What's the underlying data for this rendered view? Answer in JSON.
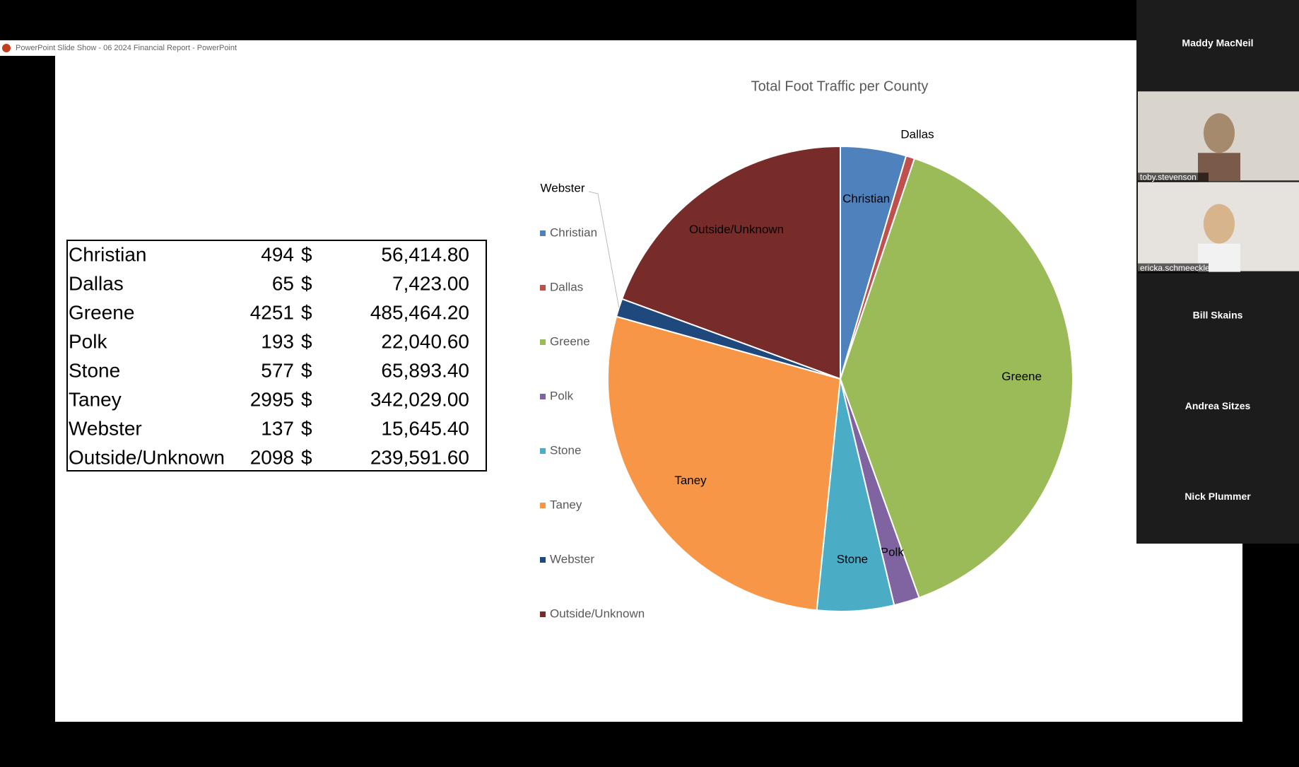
{
  "window": {
    "title": "PowerPoint Slide Show  -  06 2024 Financial Report - PowerPoint"
  },
  "chart_data": {
    "type": "pie",
    "title": "Total Foot Traffic per County",
    "categories": [
      "Christian",
      "Dallas",
      "Greene",
      "Polk",
      "Stone",
      "Taney",
      "Webster",
      "Outside/Unknown"
    ],
    "values": [
      494,
      65,
      4251,
      193,
      577,
      2995,
      137,
      2098
    ],
    "colors": [
      "#4f81bd",
      "#c0504d",
      "#9bbb59",
      "#8064a2",
      "#4bacc6",
      "#f79646",
      "#1f497d",
      "#772c2a"
    ],
    "legend": "left"
  },
  "table": {
    "rows": [
      {
        "currency": "$",
        "amount": "56,414.80"
      },
      {
        "currency": "$",
        "amount": "7,423.00"
      },
      {
        "currency": "$",
        "amount": "485,464.20"
      },
      {
        "currency": "$",
        "amount": "22,040.60"
      },
      {
        "currency": "$",
        "amount": "65,893.40"
      },
      {
        "currency": "$",
        "amount": "342,029.00"
      },
      {
        "currency": "$",
        "amount": "15,645.40"
      },
      {
        "currency": "$",
        "amount": "239,591.60"
      }
    ]
  },
  "participants": [
    "Maddy MacNeil",
    "toby.stevenson",
    "ericka.schmeeckle",
    "Bill Skains",
    "Andrea Sitzes",
    "Nick Plummer"
  ]
}
